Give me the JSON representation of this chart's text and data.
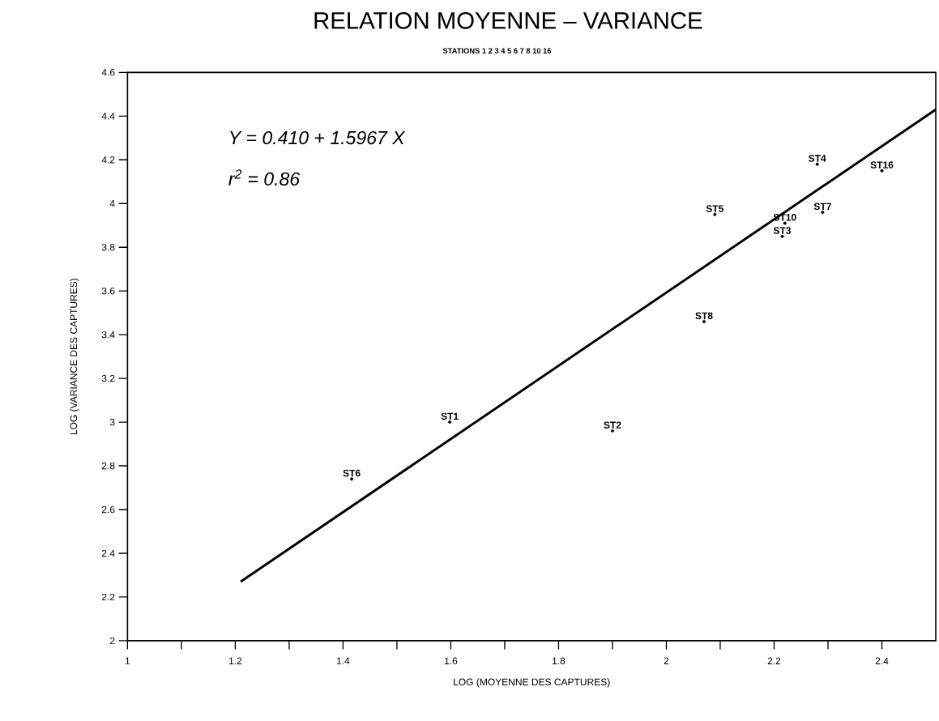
{
  "chart_data": {
    "type": "scatter",
    "title": "RELATION MOYENNE – VARIANCE",
    "subtitle": "STATIONS 1 2 3 4 5 6 7 8 10 16",
    "xlabel": "LOG (MOYENNE DES CAPTURES)",
    "ylabel": "LOG (VARIANCE DES CAPTURES)",
    "annotations": [
      "Y = 0.410 + 1.5967 X",
      "r$^{2}$ = 0.86"
    ],
    "series": [
      {
        "marker": "circle",
        "color": "#000000",
        "x": [
          1.598,
          1.9,
          2.215,
          2.28,
          2.09,
          1.416,
          2.29,
          2.07,
          2.22,
          2.4
        ],
        "values": [
          3.0,
          2.96,
          3.85,
          4.18,
          3.95,
          2.74,
          3.96,
          3.46,
          3.91,
          4.15
        ],
        "value_labels": [
          "ST1",
          "ST2",
          "ST3",
          "ST4",
          "ST5",
          "ST6",
          "ST7",
          "ST8",
          "ST10",
          "ST16"
        ]
      },
      {
        "type": "line",
        "color": "#000000",
        "x": [
          1.21,
          2.5
        ],
        "values": [
          2.27,
          4.43
        ]
      }
    ],
    "xlim": [
      1,
      2.5
    ],
    "ylim": [
      2,
      4.6
    ],
    "xticks": [
      1,
      {
        "value": 1.1,
        "label": null
      },
      1.2,
      {
        "value": 1.3,
        "label": null
      },
      1.4,
      {
        "value": 1.5,
        "label": null
      },
      1.6,
      {
        "value": 1.7,
        "label": null
      },
      1.8,
      {
        "value": 1.9,
        "label": null
      },
      2,
      {
        "value": 2.1,
        "label": null
      },
      2.2,
      {
        "value": 2.3,
        "label": null
      },
      2.4
    ],
    "yticks": [
      2,
      2.2,
      2.4,
      2.6,
      2.8,
      3,
      3.2,
      3.4,
      3.6,
      3.8,
      4,
      4.2,
      4.4,
      4.6
    ]
  }
}
